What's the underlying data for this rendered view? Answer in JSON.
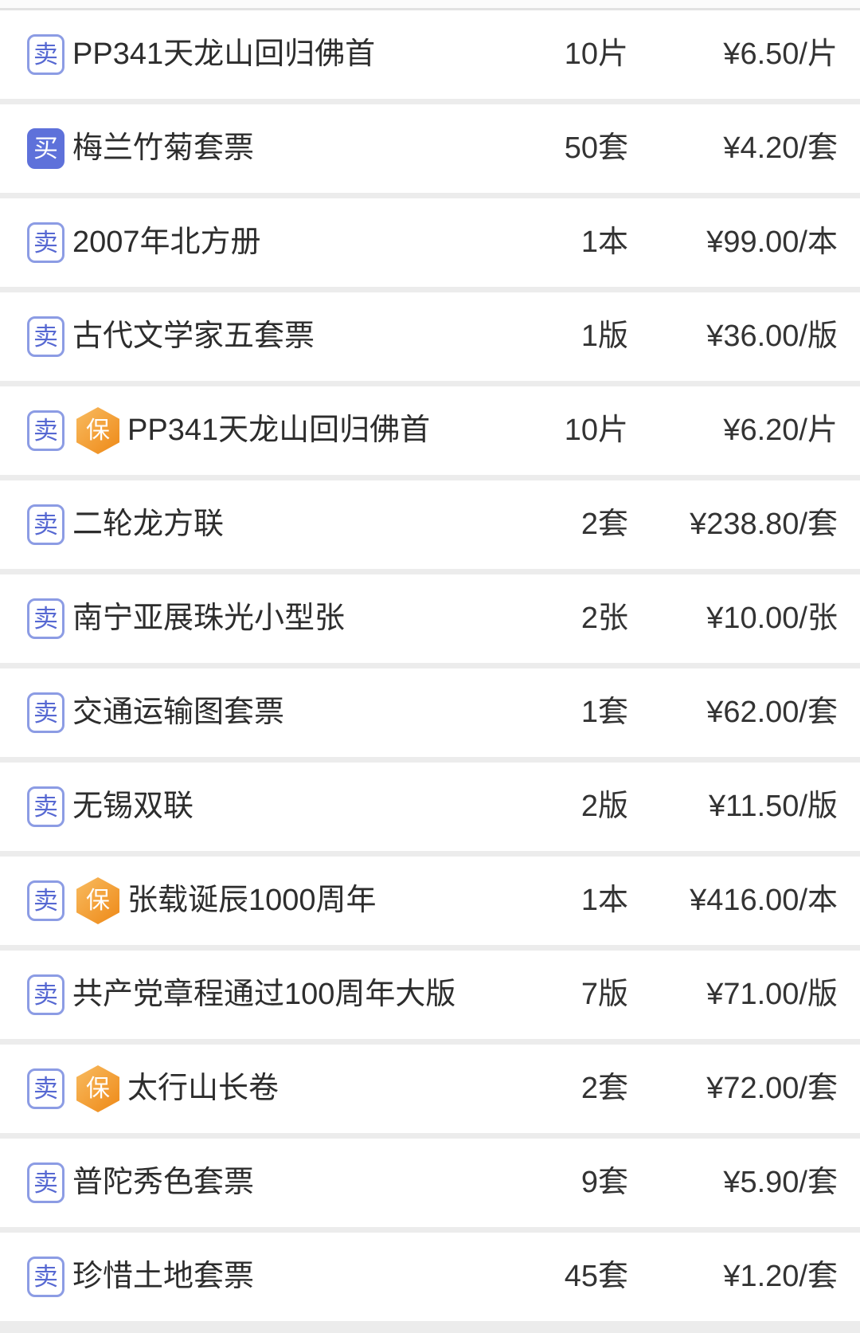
{
  "labels": {
    "sell_badge": "卖",
    "buy_badge": "买",
    "guard_badge": "保"
  },
  "colors": {
    "sell_border": "#8c9ce4",
    "sell_text": "#5668d2",
    "buy_bg": "#5e71da",
    "buy_text": "#ffffff",
    "guard_gradient_start": "#f8bb60",
    "guard_gradient_end": "#ee8917",
    "row_bg": "#ffffff",
    "separator": "#ececec",
    "name_text": "#2d2d2d",
    "value_text": "#333333"
  },
  "rows": [
    {
      "type": "sell",
      "guard": false,
      "name": "PP341天龙山回归佛首",
      "qty": "10片",
      "price": "¥6.50/片"
    },
    {
      "type": "buy",
      "guard": false,
      "name": "梅兰竹菊套票",
      "qty": "50套",
      "price": "¥4.20/套"
    },
    {
      "type": "sell",
      "guard": false,
      "name": "2007年北方册",
      "qty": "1本",
      "price": "¥99.00/本"
    },
    {
      "type": "sell",
      "guard": false,
      "name": "古代文学家五套票",
      "qty": "1版",
      "price": "¥36.00/版"
    },
    {
      "type": "sell",
      "guard": true,
      "name": "PP341天龙山回归佛首",
      "qty": "10片",
      "price": "¥6.20/片"
    },
    {
      "type": "sell",
      "guard": false,
      "name": "二轮龙方联",
      "qty": "2套",
      "price": "¥238.80/套"
    },
    {
      "type": "sell",
      "guard": false,
      "name": "南宁亚展珠光小型张",
      "qty": "2张",
      "price": "¥10.00/张"
    },
    {
      "type": "sell",
      "guard": false,
      "name": "交通运输图套票",
      "qty": "1套",
      "price": "¥62.00/套"
    },
    {
      "type": "sell",
      "guard": false,
      "name": "无锡双联",
      "qty": "2版",
      "price": "¥11.50/版"
    },
    {
      "type": "sell",
      "guard": true,
      "name": "张载诞辰1000周年",
      "qty": "1本",
      "price": "¥416.00/本"
    },
    {
      "type": "sell",
      "guard": false,
      "name": "共产党章程通过100周年大版",
      "qty": "7版",
      "price": "¥71.00/版"
    },
    {
      "type": "sell",
      "guard": true,
      "name": "太行山长卷",
      "qty": "2套",
      "price": "¥72.00/套"
    },
    {
      "type": "sell",
      "guard": false,
      "name": "普陀秀色套票",
      "qty": "9套",
      "price": "¥5.90/套"
    },
    {
      "type": "sell",
      "guard": false,
      "name": "珍惜土地套票",
      "qty": "45套",
      "price": "¥1.20/套"
    }
  ]
}
